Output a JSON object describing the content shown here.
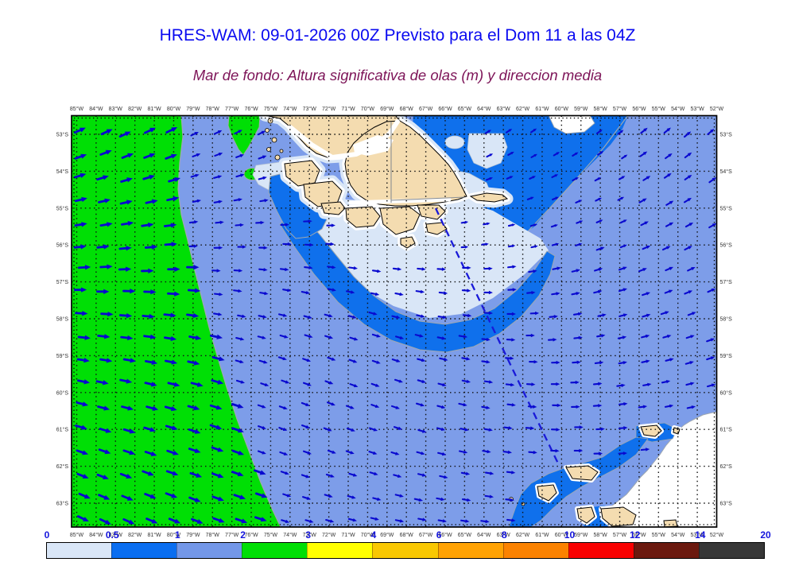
{
  "header": {
    "title": "HRES-WAM: 09-01-2026 00Z Previsto para el Dom 11 a las 04Z",
    "subtitle": "Mar de fondo: Altura significativa de olas (m) y direccion media",
    "title_color": "#0a0af0",
    "subtitle_color": "#7d1458"
  },
  "map": {
    "lon_labels": [
      "85°W",
      "84°W",
      "83°W",
      "82°W",
      "81°W",
      "80°W",
      "79°W",
      "78°W",
      "77°W",
      "76°W",
      "75°W",
      "74°W",
      "73°W",
      "72°W",
      "71°W",
      "70°W",
      "69°W",
      "68°W",
      "67°W",
      "66°W",
      "65°W",
      "64°W",
      "63°W",
      "62°W",
      "61°W",
      "60°W",
      "59°W",
      "58°W",
      "57°W",
      "56°W",
      "55°W",
      "54°W",
      "53°W",
      "52°W"
    ],
    "lat_labels": [
      "53°S",
      "54°S",
      "55°S",
      "56°S",
      "57°S",
      "58°S",
      "59°S",
      "60°S",
      "61°S",
      "62°S",
      "63°S"
    ]
  },
  "colorbar": {
    "labels": [
      "0",
      "0.5",
      "1",
      "2",
      "3",
      "4",
      "6",
      "8",
      "10",
      "12",
      "14",
      "20"
    ],
    "colors": [
      "#D9E6F7",
      "#0A6EF0",
      "#7397E8",
      "#00DF05",
      "#FFFF00",
      "#F9C802",
      "#FFA203",
      "#FB8200",
      "#F90101",
      "#6B190F",
      "#373737"
    ],
    "number_color": "#1414dc"
  },
  "chart_data": {
    "type": "heatmap",
    "title": "HRES-WAM: 09-01-2026 00Z Previsto para el Dom 11 a las 04Z",
    "field": "Mar de fondo: Altura significativa de olas (m) y direccion media",
    "x_axis": {
      "label": "longitude",
      "range": [
        "85°W",
        "52°W"
      ],
      "tick_step_deg": 1
    },
    "y_axis": {
      "label": "latitude",
      "range": [
        "53°S",
        "63°S"
      ],
      "tick_step_deg": 1
    },
    "legend_levels_m": [
      0,
      0.5,
      1,
      2,
      3,
      4,
      6,
      8,
      10,
      12,
      14,
      20
    ],
    "legend_colors": [
      "#D9E6F7",
      "#0A6EF0",
      "#7397E8",
      "#00DF05",
      "#FFFF00",
      "#F9C802",
      "#FFA203",
      "#FB8200",
      "#F90101",
      "#6B190F",
      "#373737"
    ],
    "grid": "dotted black graticule every 1 degree",
    "regions": [
      {
        "value_m": "2-3",
        "color": "#00DF05",
        "description": "Pacific sector west of ~79°W at 53°S widening to ~74°W at 63°S; two small green patches near 77°W 53°S"
      },
      {
        "value_m": "1-2",
        "color": "#7D9DE9",
        "description": "dominant field over central and Atlantic sectors"
      },
      {
        "value_m": "0.5-1",
        "color": "#0F70EC",
        "description": "NE sector east of Tierra del Fuego, band along the south coast, Pacific entrance of Magellan Strait, waters around South Shetland Islands"
      },
      {
        "value_m": "0-0.5",
        "color": "#D9E6F7",
        "description": "patches in the wave shadow NE and S of Tierra del Fuego and near coasts"
      },
      {
        "value_m": "~0",
        "color": "#FFFFFF",
        "description": "white fringe along shorelines and ice-covered sea in the SE corner"
      }
    ],
    "vectors": {
      "meaning": "mean swell direction",
      "style": "small blue arrows on ~1 degree grid",
      "color": "#0909CF",
      "pattern": "ENE in the north-west, E to ESE in the southern Pacific sector, NE over the Atlantic sector, E near the South Shetlands; larger arrows where height exceeds 2 m"
    },
    "track": {
      "style": "dashed blue line",
      "color": "#1A1AD8",
      "from": "≈66.6°W 55.0°S (SE of Tierra del Fuego)",
      "to": "≈60.3°W 61.9°S (near South Shetland Islands)"
    },
    "land": {
      "description": "southern Patagonia and Tierra del Fuego archipelago (top centre), Staten Island, South Shetland Islands (bottom right)",
      "color": "#F4DCB0",
      "coastline_color": "#000000"
    },
    "palette": {
      "sea_1_2": "#7D9DE9",
      "sea_05_1": "#0F70EC",
      "sea_0_05": "#D9E6F7",
      "sea_2_3": "#00DF05",
      "calm_white": "#FFFFFF",
      "land": "#F4DCB0",
      "coastline": "#000000",
      "arrows": "#0909CF",
      "track": "#1A1AD8",
      "contour_gray": "#9FA8B0",
      "border_gray": "#8A8F94",
      "tick_text": "#333333"
    }
  }
}
